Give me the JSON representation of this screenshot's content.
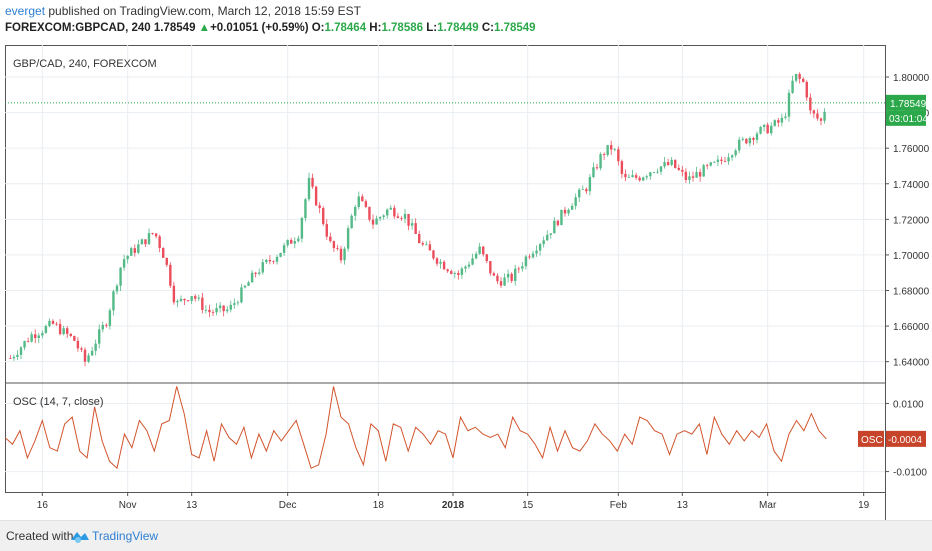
{
  "header": {
    "publisher": "everget",
    "published_text": " published on TradingView.com, March 12, 2018 15:59 EST",
    "symbol_line": {
      "symbol": "FOREXCOM:GBPCAD, 240",
      "last": "1.78549",
      "arrow": "▲",
      "change": "+0.01051 (+0.59%)",
      "open_label": "O:",
      "open": "1.78464",
      "high_label": "H:",
      "high": "1.78586",
      "low_label": "L:",
      "low": "1.78449",
      "close_label": "C:",
      "close": "1.78549"
    }
  },
  "footer": {
    "created_with": "Created with",
    "brand": "TradingView"
  },
  "colors": {
    "up": "#53b987",
    "down": "#eb4d5c",
    "grid": "#e9eef2",
    "osc": "#d2542c",
    "last_price_bg": "#2ba84a",
    "osc_badge_bg": "#c7442a",
    "border": "#555555"
  },
  "chart_data": [
    {
      "type": "candlestick",
      "title": "GBP/CAD, 240, FOREXCOM",
      "ylim": [
        1.628,
        1.818
      ],
      "y_ticks": [
        "1.80000",
        "1.78000",
        "1.76000",
        "1.74000",
        "1.72000",
        "1.70000",
        "1.68000",
        "1.66000",
        "1.64000"
      ],
      "last_price_label": "1.78549",
      "countdown_label": "03:01:04",
      "last_price": 1.78549,
      "x_ticks": [
        "16",
        "Nov",
        "13",
        "Dec",
        "18",
        "2018",
        "15",
        "Feb",
        "13",
        "Mar",
        "19"
      ],
      "anchors": [
        [
          "2017-10-10",
          1.642
        ],
        [
          "2017-10-14",
          1.655
        ],
        [
          "2017-10-18",
          1.661
        ],
        [
          "2017-10-22",
          1.652
        ],
        [
          "2017-10-24",
          1.64
        ],
        [
          "2017-10-28",
          1.663
        ],
        [
          "2017-10-31",
          1.697
        ],
        [
          "2017-11-03",
          1.705
        ],
        [
          "2017-11-06",
          1.713
        ],
        [
          "2017-11-08",
          1.698
        ],
        [
          "2017-11-10",
          1.672
        ],
        [
          "2017-11-13",
          1.678
        ],
        [
          "2017-11-16",
          1.668
        ],
        [
          "2017-11-20",
          1.669
        ],
        [
          "2017-11-25",
          1.69
        ],
        [
          "2017-11-30",
          1.703
        ],
        [
          "2017-12-03",
          1.712
        ],
        [
          "2017-12-05",
          1.741
        ],
        [
          "2017-12-07",
          1.725
        ],
        [
          "2017-12-09",
          1.706
        ],
        [
          "2017-12-11",
          1.698
        ],
        [
          "2017-12-14",
          1.733
        ],
        [
          "2017-12-17",
          1.718
        ],
        [
          "2017-12-20",
          1.726
        ],
        [
          "2017-12-23",
          1.722
        ],
        [
          "2017-12-26",
          1.706
        ],
        [
          "2017-12-30",
          1.695
        ],
        [
          "2018-01-02",
          1.689
        ],
        [
          "2018-01-06",
          1.703
        ],
        [
          "2018-01-09",
          1.685
        ],
        [
          "2018-01-12",
          1.687
        ],
        [
          "2018-01-15",
          1.7
        ],
        [
          "2018-01-19",
          1.713
        ],
        [
          "2018-01-23",
          1.729
        ],
        [
          "2018-01-26",
          1.738
        ],
        [
          "2018-01-29",
          1.757
        ],
        [
          "2018-01-31",
          1.761
        ],
        [
          "2018-02-02",
          1.742
        ],
        [
          "2018-02-05",
          1.744
        ],
        [
          "2018-02-08",
          1.749
        ],
        [
          "2018-02-11",
          1.751
        ],
        [
          "2018-02-14",
          1.742
        ],
        [
          "2018-02-16",
          1.746
        ],
        [
          "2018-02-20",
          1.752
        ],
        [
          "2018-02-23",
          1.761
        ],
        [
          "2018-02-27",
          1.769
        ],
        [
          "2018-03-01",
          1.771
        ],
        [
          "2018-03-04",
          1.776
        ],
        [
          "2018-03-06",
          1.801
        ],
        [
          "2018-03-08",
          1.796
        ],
        [
          "2018-03-09",
          1.78
        ],
        [
          "2018-03-11",
          1.775
        ],
        [
          "2018-03-12",
          1.785
        ]
      ]
    },
    {
      "type": "line",
      "title": "OSC (14, 7, close)",
      "ylim": [
        -0.016,
        0.016
      ],
      "y_ticks": [
        "0.0100",
        "-0.0100"
      ],
      "last_value_label": "-0.0004",
      "badge_label": "OSC",
      "series": [
        {
          "values": [
            0.0,
            -0.002,
            0.002,
            -0.006,
            -0.001,
            0.005,
            -0.003,
            -0.004,
            0.004,
            0.006,
            -0.004,
            -0.006,
            0.009,
            -0.001,
            -0.007,
            -0.009,
            0.001,
            -0.003,
            0.005,
            0.002,
            -0.004,
            0.004,
            0.005,
            0.015,
            0.007,
            -0.005,
            -0.006,
            0.002,
            -0.007,
            0.004,
            0.0,
            -0.002,
            0.003,
            -0.006,
            0.001,
            -0.004,
            0.002,
            -0.001,
            0.002,
            0.005,
            -0.002,
            -0.009,
            -0.008,
            0.001,
            0.015,
            0.006,
            0.004,
            -0.003,
            -0.008,
            0.004,
            0.002,
            -0.007,
            0.004,
            0.003,
            -0.004,
            0.003,
            0.001,
            -0.002,
            0.002,
            0.001,
            -0.006,
            0.006,
            0.002,
            0.003,
            0.001,
            0.0,
            0.001,
            -0.003,
            0.006,
            0.002,
            0.001,
            -0.002,
            -0.006,
            0.003,
            -0.004,
            0.002,
            -0.003,
            -0.004,
            -0.001,
            0.004,
            0.001,
            -0.001,
            -0.004,
            0.001,
            -0.002,
            0.006,
            0.005,
            0.002,
            0.001,
            -0.005,
            0.001,
            0.002,
            0.001,
            0.004,
            -0.005,
            0.006,
            0.001,
            -0.002,
            0.002,
            -0.001,
            0.002,
            0.0,
            0.004,
            -0.004,
            -0.007,
            0.001,
            0.005,
            0.002,
            0.007,
            0.002,
            -0.0004
          ]
        }
      ]
    }
  ]
}
